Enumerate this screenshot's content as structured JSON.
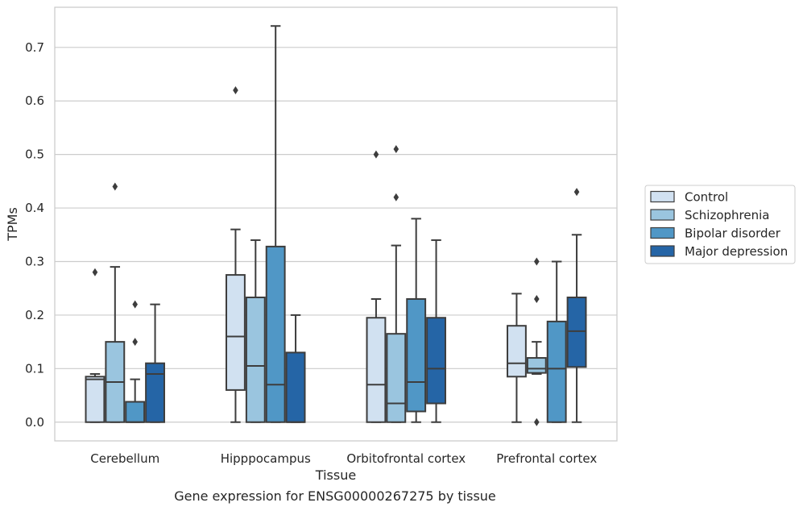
{
  "caption": "Gene expression for ENSG00000267275 by tissue",
  "chart_data": {
    "type": "box",
    "xlabel": "Tissue",
    "ylabel": "TPMs",
    "ylim": [
      -0.035,
      0.775
    ],
    "yticks": [
      0.0,
      0.1,
      0.2,
      0.3,
      0.4,
      0.5,
      0.6,
      0.7
    ],
    "ytick_labels": [
      "0.0",
      "0.1",
      "0.2",
      "0.3",
      "0.4",
      "0.5",
      "0.6",
      "0.7"
    ],
    "grid": "horizontal",
    "legend_position": "right",
    "categories": [
      "Cerebellum",
      "Hipppocampus",
      "Orbitofrontal cortex",
      "Prefrontal cortex"
    ],
    "series": [
      {
        "name": "Control",
        "color": "#d1e1f1",
        "boxes": [
          {
            "whislo": 0.0,
            "q1": 0.0,
            "med": 0.08,
            "q3": 0.085,
            "whishi": 0.09,
            "fliers": [
              0.28
            ]
          },
          {
            "whislo": 0.0,
            "q1": 0.06,
            "med": 0.16,
            "q3": 0.275,
            "whishi": 0.36,
            "fliers": [
              0.62
            ]
          },
          {
            "whislo": 0.0,
            "q1": 0.0,
            "med": 0.07,
            "q3": 0.195,
            "whishi": 0.23,
            "fliers": [
              0.5
            ]
          },
          {
            "whislo": 0.0,
            "q1": 0.085,
            "med": 0.11,
            "q3": 0.18,
            "whishi": 0.24,
            "fliers": []
          }
        ]
      },
      {
        "name": "Schizophrenia",
        "color": "#9ac5df",
        "boxes": [
          {
            "whislo": 0.0,
            "q1": 0.0,
            "med": 0.075,
            "q3": 0.15,
            "whishi": 0.29,
            "fliers": [
              0.44
            ]
          },
          {
            "whislo": 0.0,
            "q1": 0.0,
            "med": 0.105,
            "q3": 0.233,
            "whishi": 0.34,
            "fliers": []
          },
          {
            "whislo": 0.0,
            "q1": 0.0,
            "med": 0.035,
            "q3": 0.165,
            "whishi": 0.33,
            "fliers": [
              0.51,
              0.42
            ]
          },
          {
            "whislo": 0.09,
            "q1": 0.092,
            "med": 0.1,
            "q3": 0.12,
            "whishi": 0.15,
            "fliers": [
              0.3,
              0.23,
              0.0
            ]
          }
        ]
      },
      {
        "name": "Bipolar disorder",
        "color": "#5097c6",
        "boxes": [
          {
            "whislo": 0.0,
            "q1": 0.0,
            "med": 0.0,
            "q3": 0.038,
            "whishi": 0.08,
            "fliers": [
              0.22,
              0.15
            ]
          },
          {
            "whislo": 0.0,
            "q1": 0.0,
            "med": 0.07,
            "q3": 0.328,
            "whishi": 0.74,
            "fliers": []
          },
          {
            "whislo": 0.0,
            "q1": 0.02,
            "med": 0.075,
            "q3": 0.23,
            "whishi": 0.38,
            "fliers": []
          },
          {
            "whislo": 0.0,
            "q1": 0.0,
            "med": 0.1,
            "q3": 0.188,
            "whishi": 0.3,
            "fliers": []
          }
        ]
      },
      {
        "name": "Major depression",
        "color": "#2565a6",
        "boxes": [
          {
            "whislo": 0.0,
            "q1": 0.0,
            "med": 0.09,
            "q3": 0.11,
            "whishi": 0.22,
            "fliers": []
          },
          {
            "whislo": 0.0,
            "q1": 0.0,
            "med": 0.0,
            "q3": 0.13,
            "whishi": 0.2,
            "fliers": []
          },
          {
            "whislo": 0.0,
            "q1": 0.035,
            "med": 0.1,
            "q3": 0.195,
            "whishi": 0.34,
            "fliers": []
          },
          {
            "whislo": 0.0,
            "q1": 0.103,
            "med": 0.17,
            "q3": 0.233,
            "whishi": 0.35,
            "fliers": [
              0.43
            ]
          }
        ]
      }
    ]
  }
}
